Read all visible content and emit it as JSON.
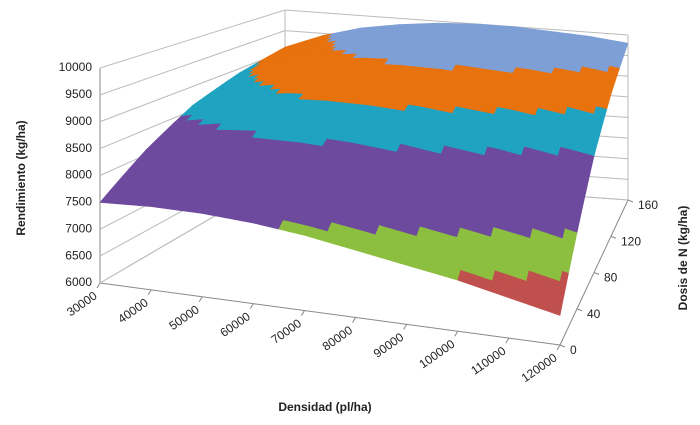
{
  "chart_data": {
    "type": "surface",
    "x_label": "Densidad (pl/ha)",
    "y_label": "Dosis de N (kg/ha)",
    "z_label": "Rendimiento (kg/ha)",
    "x": [
      30000,
      40000,
      50000,
      60000,
      70000,
      80000,
      90000,
      100000,
      110000,
      120000
    ],
    "y": [
      0,
      40,
      80,
      120,
      160
    ],
    "values": [
      [
        7500,
        7550,
        7550,
        7500,
        7400,
        7250,
        7100,
        6950,
        6750,
        6550
      ],
      [
        8100,
        8250,
        8300,
        8300,
        8250,
        8150,
        8000,
        7850,
        7700,
        7500
      ],
      [
        8600,
        8800,
        8950,
        9000,
        9000,
        8950,
        8850,
        8750,
        8600,
        8450
      ],
      [
        8900,
        9200,
        9400,
        9500,
        9550,
        9550,
        9500,
        9450,
        9350,
        9200
      ],
      [
        9100,
        9450,
        9700,
        9850,
        9950,
        10000,
        10000,
        9950,
        9900,
        9800
      ]
    ],
    "xlim": [
      30000,
      120000
    ],
    "ylim": [
      0,
      160
    ],
    "zlim": [
      6000,
      10000
    ],
    "zticks": [
      6000,
      6500,
      7000,
      7500,
      8000,
      8500,
      9000,
      9500,
      10000
    ],
    "band_colors": [
      "#c0504d",
      "#c0504d",
      "#8cbf3f",
      "#6e4a9e",
      "#6e4a9e",
      "#1fa3c1",
      "#e8720e",
      "#7e9fd6"
    ],
    "grid": true
  }
}
